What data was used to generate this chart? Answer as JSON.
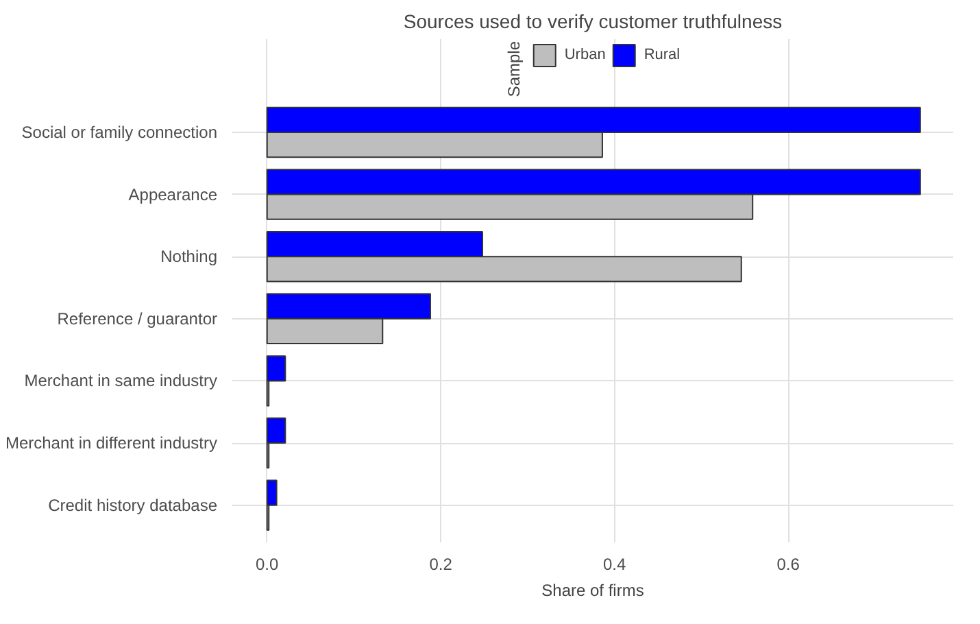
{
  "chart_data": {
    "type": "bar",
    "orientation": "horizontal",
    "title": "Sources used to verify customer truthfulness",
    "xlabel": "Share of firms",
    "legend_title": "Sample",
    "legend": "top",
    "categories": [
      "Social or family connection",
      "Appearance",
      "Nothing",
      "Reference / guarantor",
      "Merchant in same industry",
      "Merchant in different industry",
      "Credit history database"
    ],
    "series": [
      {
        "name": "Rural",
        "color": "#0000ff",
        "values": [
          0.752,
          0.752,
          0.248,
          0.188,
          0.021,
          0.021,
          0.011
        ]
      },
      {
        "name": "Urban",
        "color": "#bebebe",
        "values": [
          0.386,
          0.559,
          0.546,
          0.133,
          0.002,
          0.002,
          0.002
        ]
      }
    ],
    "xlim": [
      -0.04,
      0.79
    ],
    "xticks": [
      {
        "value": 0,
        "label": "0.0"
      },
      0.2,
      0.4,
      0.6
    ],
    "grid": true
  }
}
